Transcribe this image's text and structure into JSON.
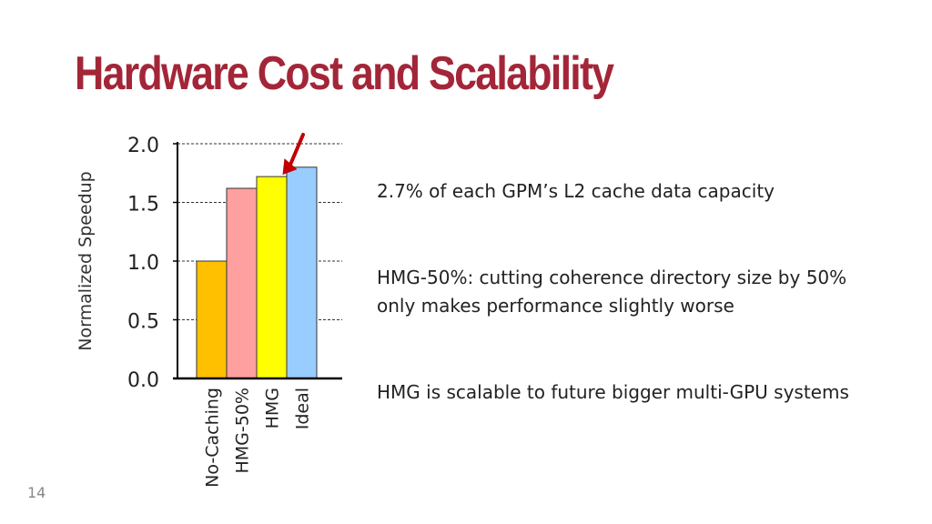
{
  "slide": {
    "title": "Hardware Cost and Scalability",
    "page_number": "14",
    "bullets": [
      {
        "lines": [
          "2.7% of each GPM’s L2 cache data capacity"
        ]
      },
      {
        "lines": [
          "HMG-50%: cutting coherence directory size by 50%",
          "only makes performance slightly worse"
        ]
      },
      {
        "lines": [
          "HMG is scalable to future bigger multi-GPU systems"
        ]
      }
    ]
  },
  "chart_data": {
    "type": "bar",
    "categories": [
      "No-Caching",
      "HMG-50%",
      "HMG",
      "Ideal"
    ],
    "values": [
      1.0,
      1.62,
      1.72,
      1.8
    ],
    "colors": [
      "#ffc000",
      "#ffa0a0",
      "#ffff00",
      "#99ccff"
    ],
    "xlabel": "",
    "ylabel": "Normalized Speedup",
    "ylim": [
      0,
      2.0
    ],
    "yticks": [
      "0.0",
      "0.5",
      "1.0",
      "1.5",
      "2.0"
    ],
    "ytick_values": [
      0,
      0.5,
      1.0,
      1.5,
      2.0
    ],
    "grid": true,
    "highlight": "HMG",
    "highlight_color": "#c00000"
  }
}
